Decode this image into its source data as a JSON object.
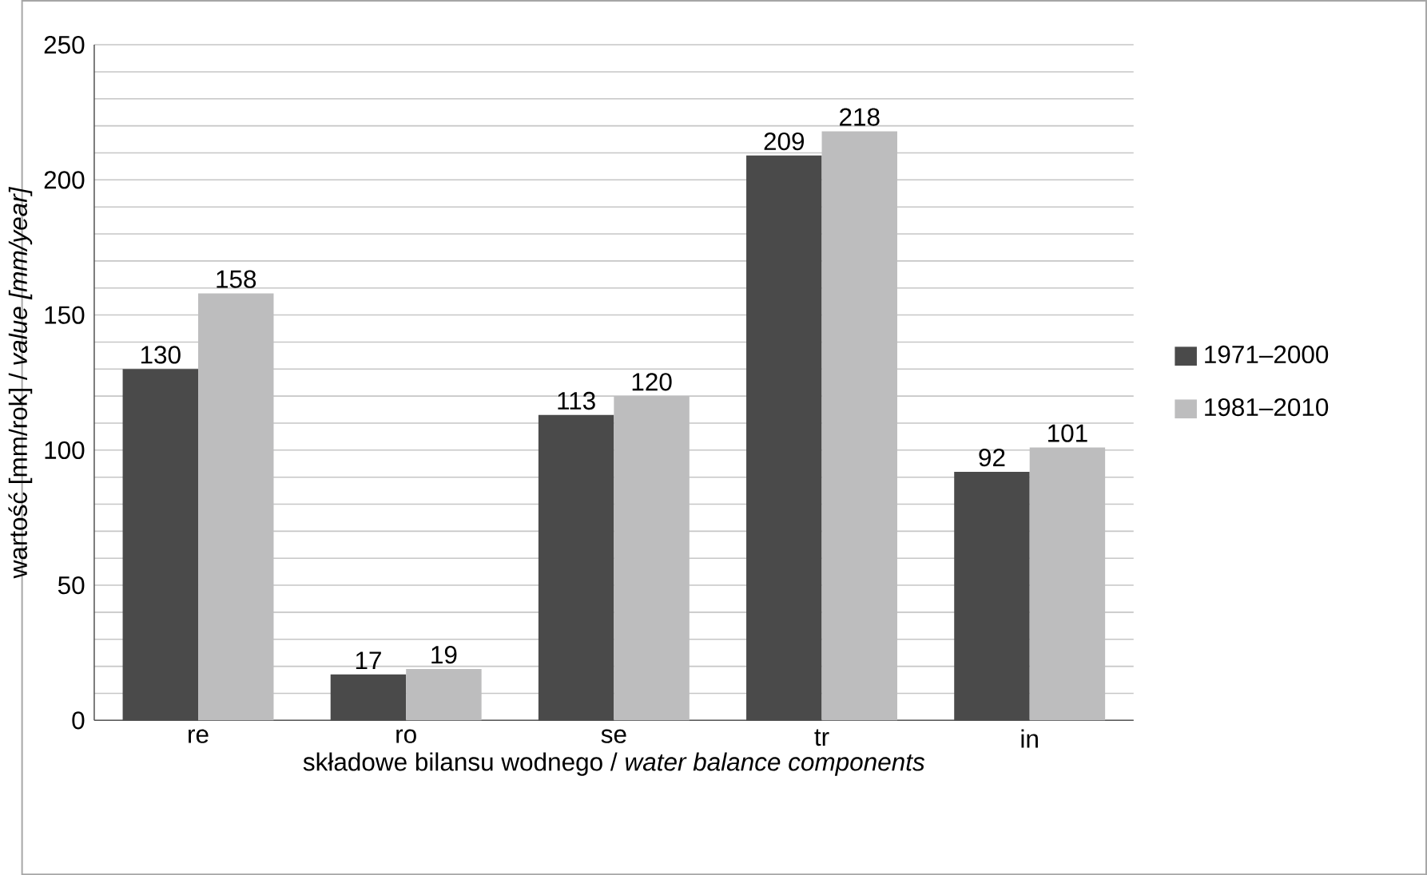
{
  "chart_data": {
    "type": "bar",
    "xlabel": "składowe bilansu wodnego / *water balance components*",
    "ylabel": "wartość [mm/rok] / *value [mm/year]*",
    "categories": [
      "re",
      "ro",
      "se",
      "tr",
      "in"
    ],
    "series": [
      {
        "name": "1971–2000",
        "color": "#4a4a4a",
        "values": [
          130,
          17,
          113,
          209,
          92
        ]
      },
      {
        "name": "1981–2010",
        "color": "#bdbdbe",
        "values": [
          158,
          19,
          120,
          218,
          101
        ]
      }
    ],
    "ylim": [
      0,
      250
    ],
    "yticks": [
      0,
      {
        "value": 10,
        "label": null
      },
      {
        "value": 20,
        "label": null
      },
      {
        "value": 30,
        "label": null
      },
      {
        "value": 40,
        "label": null
      },
      50,
      {
        "value": 60,
        "label": null
      },
      {
        "value": 70,
        "label": null
      },
      {
        "value": 80,
        "label": null
      },
      {
        "value": 90,
        "label": null
      },
      100,
      {
        "value": 110,
        "label": null
      },
      {
        "value": 120,
        "label": null
      },
      {
        "value": 130,
        "label": null
      },
      {
        "value": 140,
        "label": null
      },
      150,
      {
        "value": 160,
        "label": null
      },
      {
        "value": 170,
        "label": null
      },
      {
        "value": 180,
        "label": null
      },
      {
        "value": 190,
        "label": null
      },
      200,
      {
        "value": 210,
        "label": null
      },
      {
        "value": 220,
        "label": null
      },
      {
        "value": 230,
        "label": null
      },
      {
        "value": 240,
        "label": null
      },
      250
    ],
    "grid": "y",
    "legend": "right",
    "data_labels": true
  }
}
